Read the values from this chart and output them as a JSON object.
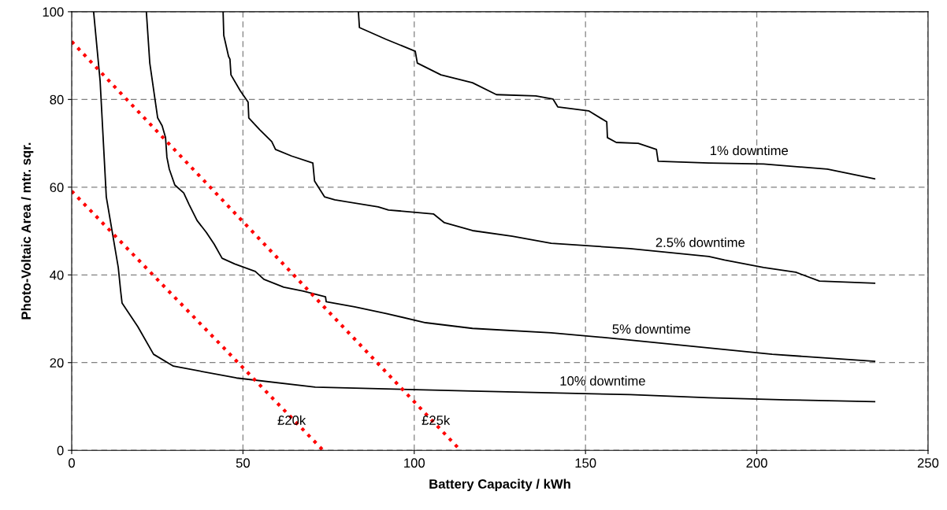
{
  "chart_data": {
    "type": "line",
    "xlabel": "Battery Capacity / kWh",
    "ylabel": "Photo-Voltaic Area / mtr. sqr.",
    "xlim": [
      0,
      250
    ],
    "ylim": [
      0,
      100
    ],
    "xticks": [
      0,
      50,
      100,
      150,
      200,
      250
    ],
    "yticks": [
      0,
      20,
      40,
      60,
      80,
      100
    ],
    "grid": true,
    "legend": false,
    "marker": "none",
    "series": [
      {
        "name": "10% downtime",
        "color": "#000000",
        "line_style": "solid",
        "x": [
          6.4,
          8.3,
          10.1,
          13.6,
          14.3,
          14.7,
          19.3,
          23.9,
          29.7,
          48.1,
          71.1,
          117,
          163,
          186,
          209,
          234.4
        ],
        "values": [
          100,
          84.2,
          57.8,
          41.7,
          36.3,
          33.6,
          28.2,
          21.9,
          19.2,
          16.5,
          14.4,
          13.5,
          12.7,
          12.0,
          11.5,
          11.1
        ]
      },
      {
        "name": "5% downtime",
        "color": "#000000",
        "line_style": "solid",
        "x": [
          21.8,
          22.8,
          25.1,
          26.4,
          27.4,
          27.8,
          28.5,
          30.1,
          32.7,
          34.3,
          36.6,
          39.3,
          41.6,
          43.9,
          47.6,
          53.6,
          56.1,
          61.9,
          67.6,
          74.1,
          74.3,
          82.6,
          91.8,
          103.3,
          117,
          140,
          158.5,
          181.5,
          204.5,
          234.4
        ],
        "values": [
          100,
          88.3,
          75.8,
          74,
          71.3,
          66.8,
          64.1,
          60.5,
          58.7,
          56,
          52.4,
          49.7,
          47,
          43.8,
          42.5,
          40.8,
          39,
          37.2,
          36.3,
          35,
          33.9,
          32.7,
          31.2,
          29.1,
          27.8,
          26.8,
          25.5,
          23.7,
          21.9,
          20.3
        ]
      },
      {
        "name": "2.5% downtime",
        "color": "#000000",
        "line_style": "solid",
        "x": [
          44.2,
          44.4,
          45.8,
          46.2,
          46.5,
          49.2,
          51.5,
          51.7,
          54.9,
          58.4,
          59.5,
          64.2,
          70.4,
          70.9,
          73.8,
          76.8,
          89.5,
          92.5,
          105.6,
          108.8,
          117,
          128.6,
          140,
          163,
          186,
          190.6,
          202,
          211.4,
          218.3,
          234.4
        ],
        "values": [
          100,
          94.6,
          89.8,
          89.2,
          85.6,
          82,
          79.4,
          75.8,
          73.1,
          70.4,
          68.6,
          67.1,
          65.5,
          61.4,
          57.8,
          57.1,
          55.5,
          54.8,
          53.9,
          51.9,
          50.1,
          48.8,
          47.2,
          46,
          44.2,
          43.4,
          41.7,
          40.6,
          38.6,
          38.1
        ]
      },
      {
        "name": "1% downtime",
        "color": "#000000",
        "line_style": "solid",
        "x": [
          83.7,
          84,
          91.8,
          100.3,
          100.9,
          107.8,
          117,
          124,
          135.5,
          140.5,
          141.9,
          150.9,
          156.2,
          156.4,
          159,
          165.4,
          170.7,
          171.2,
          186,
          202,
          220.6,
          234.4
        ],
        "values": [
          100,
          96.4,
          93.7,
          91,
          88.3,
          85.6,
          83.8,
          81.1,
          80.8,
          80.1,
          78.3,
          77.4,
          74.9,
          71.3,
          70.2,
          70,
          68.6,
          65.9,
          65.5,
          65.3,
          64.1,
          61.9
        ]
      },
      {
        "color": "#ff0000",
        "line_style": "dotted",
        "x": [
          0,
          73.4
        ],
        "values": [
          59.1,
          0
        ]
      },
      {
        "color": "#ff0000",
        "line_style": "dotted",
        "x": [
          0,
          113.5
        ],
        "values": [
          93.2,
          0
        ]
      }
    ],
    "annotations": [
      {
        "text": "£20k",
        "x": 64.2,
        "y": 6.6
      },
      {
        "text": "£25k",
        "x": 106.3,
        "y": 6.6
      }
    ]
  }
}
